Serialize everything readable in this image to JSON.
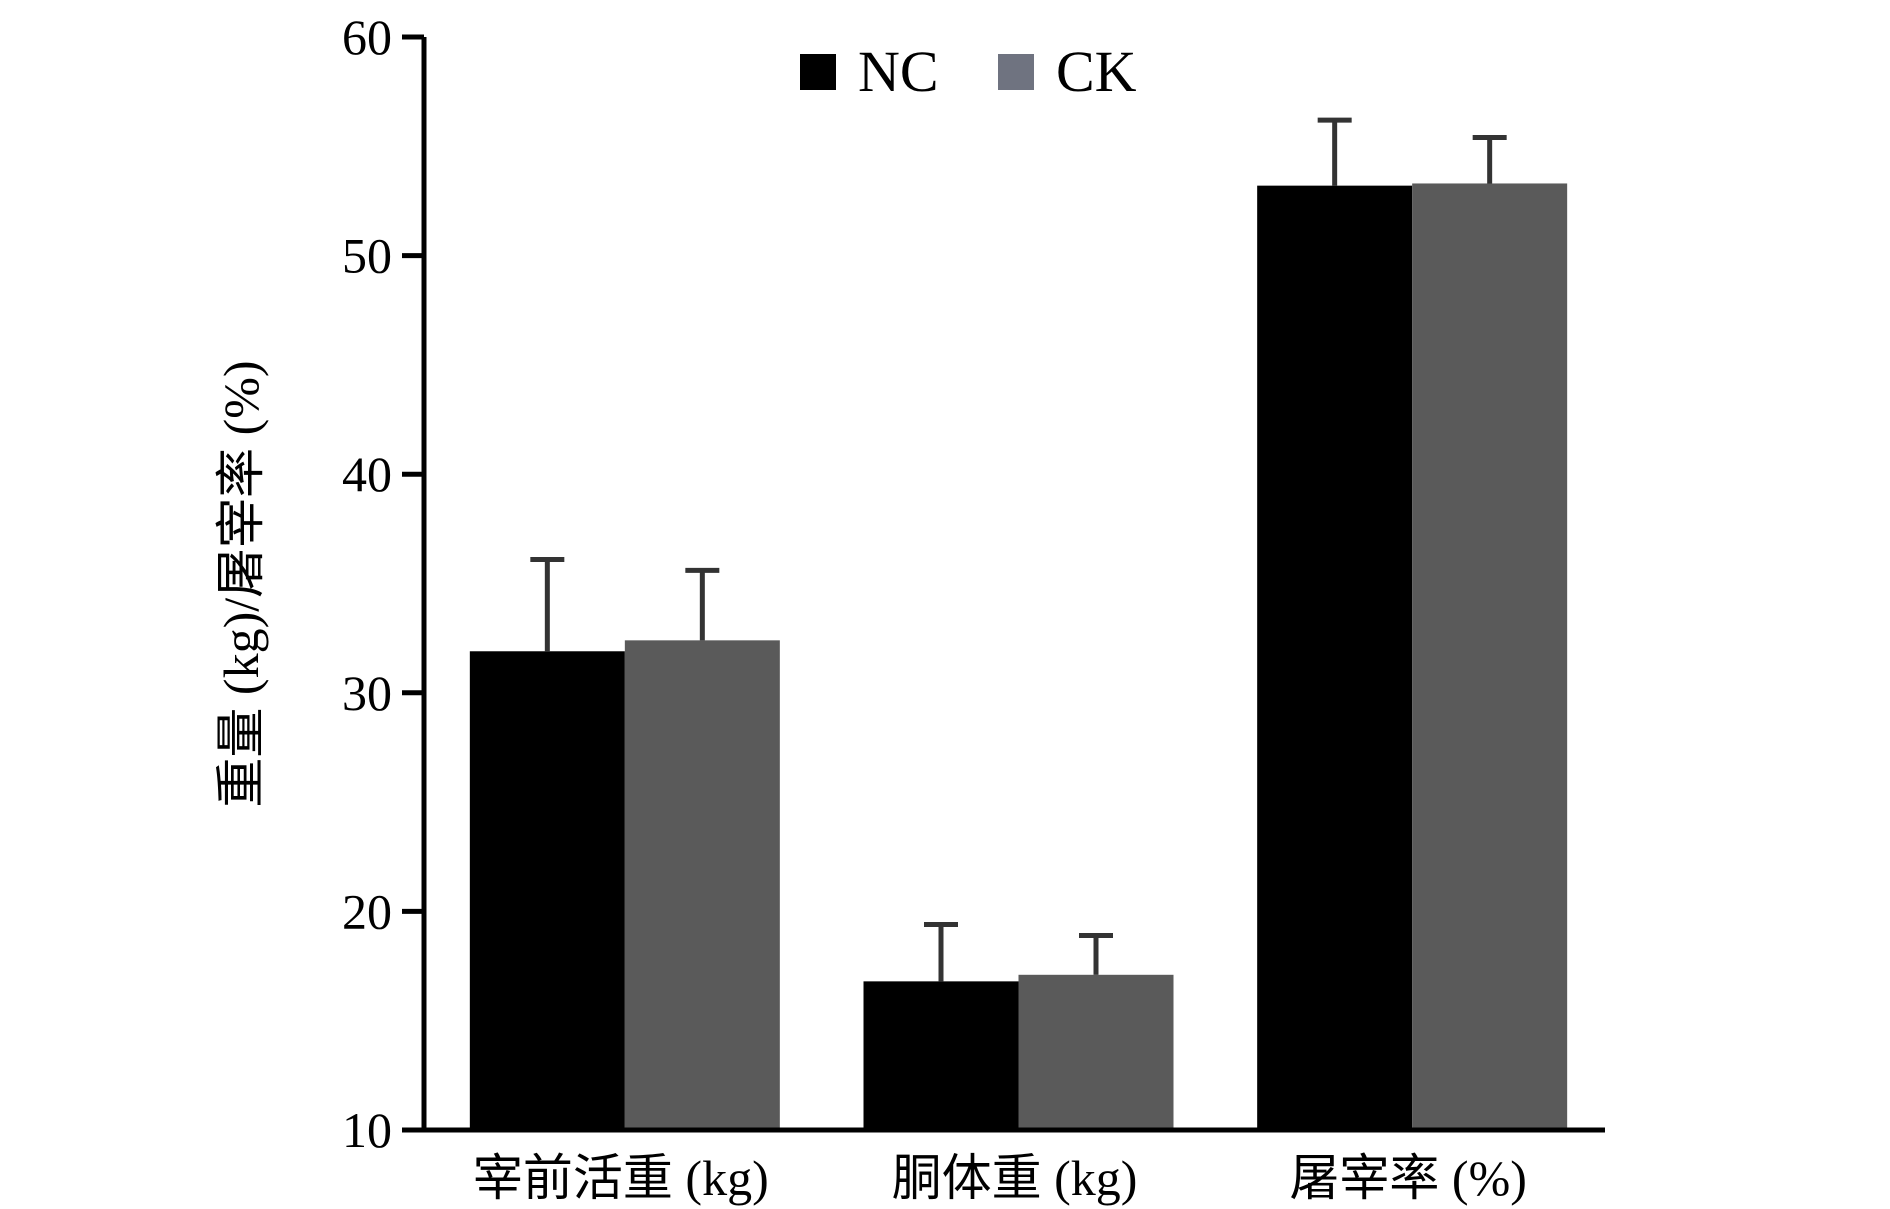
{
  "chart_data": {
    "type": "bar",
    "categories": [
      "宰前活重 (kg)",
      "胴体重 (kg)",
      "屠宰率 (%)"
    ],
    "series": [
      {
        "name": "NC",
        "values": [
          31.9,
          16.8,
          53.2
        ],
        "errors": [
          4.2,
          2.6,
          3.0
        ],
        "color": "#000000",
        "legend_color": "#000000"
      },
      {
        "name": "CK",
        "values": [
          32.4,
          17.1,
          53.3
        ],
        "errors": [
          3.2,
          1.8,
          2.1
        ],
        "color": "#5a5a5a",
        "legend_color": "#6f7380"
      }
    ],
    "title": "",
    "xlabel": "",
    "ylabel": "重量 (kg)/屠宰率 (%)",
    "ylim": [
      10,
      60
    ],
    "yticks": [
      10,
      20,
      30,
      40,
      50,
      60
    ],
    "grid": false,
    "legend": "top-center"
  }
}
